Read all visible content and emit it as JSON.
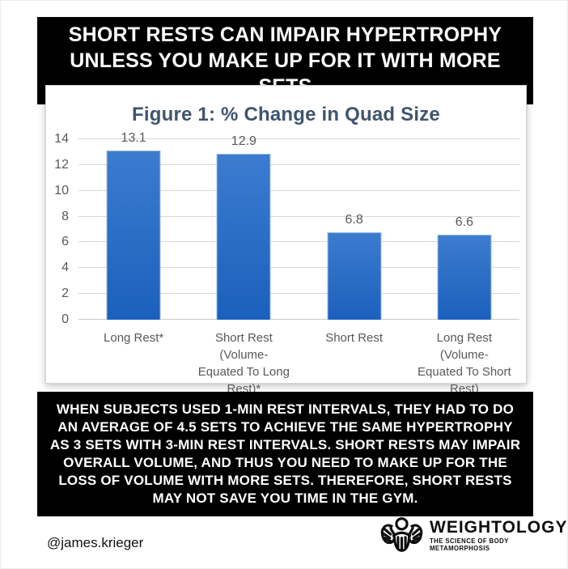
{
  "banner": {
    "text": "SHORT RESTS CAN IMPAIR HYPERTROPHY UNLESS YOU MAKE UP FOR IT WITH MORE SETS",
    "bg": "#000000",
    "fg": "#ffffff"
  },
  "chart_data": {
    "type": "bar",
    "title": "Figure 1: % Change in Quad Size",
    "categories": [
      "Long Rest*",
      "Short Rest (Volume-Equated To Long Rest)*",
      "Short Rest",
      "Long Rest (Volume-Equated To Short Rest)"
    ],
    "categories_lines": [
      [
        "Long Rest*"
      ],
      [
        "Short Rest (Volume-",
        "Equated To Long",
        "Rest)*"
      ],
      [
        "Short Rest"
      ],
      [
        "Long Rest (Volume-",
        "Equated To Short",
        "Rest)"
      ]
    ],
    "values": [
      13.1,
      12.9,
      6.8,
      6.6
    ],
    "value_labels": [
      "13.1",
      "12.9",
      "6.8",
      "6.6"
    ],
    "xlabel": "",
    "ylabel": "",
    "ylim": [
      0,
      14
    ],
    "yticks": [
      0,
      2,
      4,
      6,
      8,
      10,
      12,
      14
    ],
    "grid": true,
    "legend": "none",
    "colors": {
      "bar_top": "#3c7ccf",
      "bar_bottom": "#1b60bd",
      "title_text": "#3f556e",
      "axis_text": "#595959",
      "gridline": "#d6d6d6"
    }
  },
  "summary": {
    "text": "WHEN SUBJECTS USED 1-MIN REST INTERVALS, THEY HAD TO DO AN AVERAGE OF 4.5 SETS TO ACHIEVE THE SAME HYPERTROPHY AS 3 SETS WITH 3-MIN REST INTERVALS. SHORT RESTS MAY IMPAIR OVERALL VOLUME, AND THUS YOU NEED TO MAKE UP FOR THE LOSS OF VOLUME WITH MORE SETS. THEREFORE, SHORT RESTS MAY NOT SAVE YOU TIME IN THE GYM.",
    "bg": "#000000",
    "fg": "#ffffff"
  },
  "footer": {
    "handle": "@james.krieger",
    "brand": "WEIGHTOLOGY",
    "tagline": "THE SCIENCE OF BODY METAMORPHOSIS"
  }
}
